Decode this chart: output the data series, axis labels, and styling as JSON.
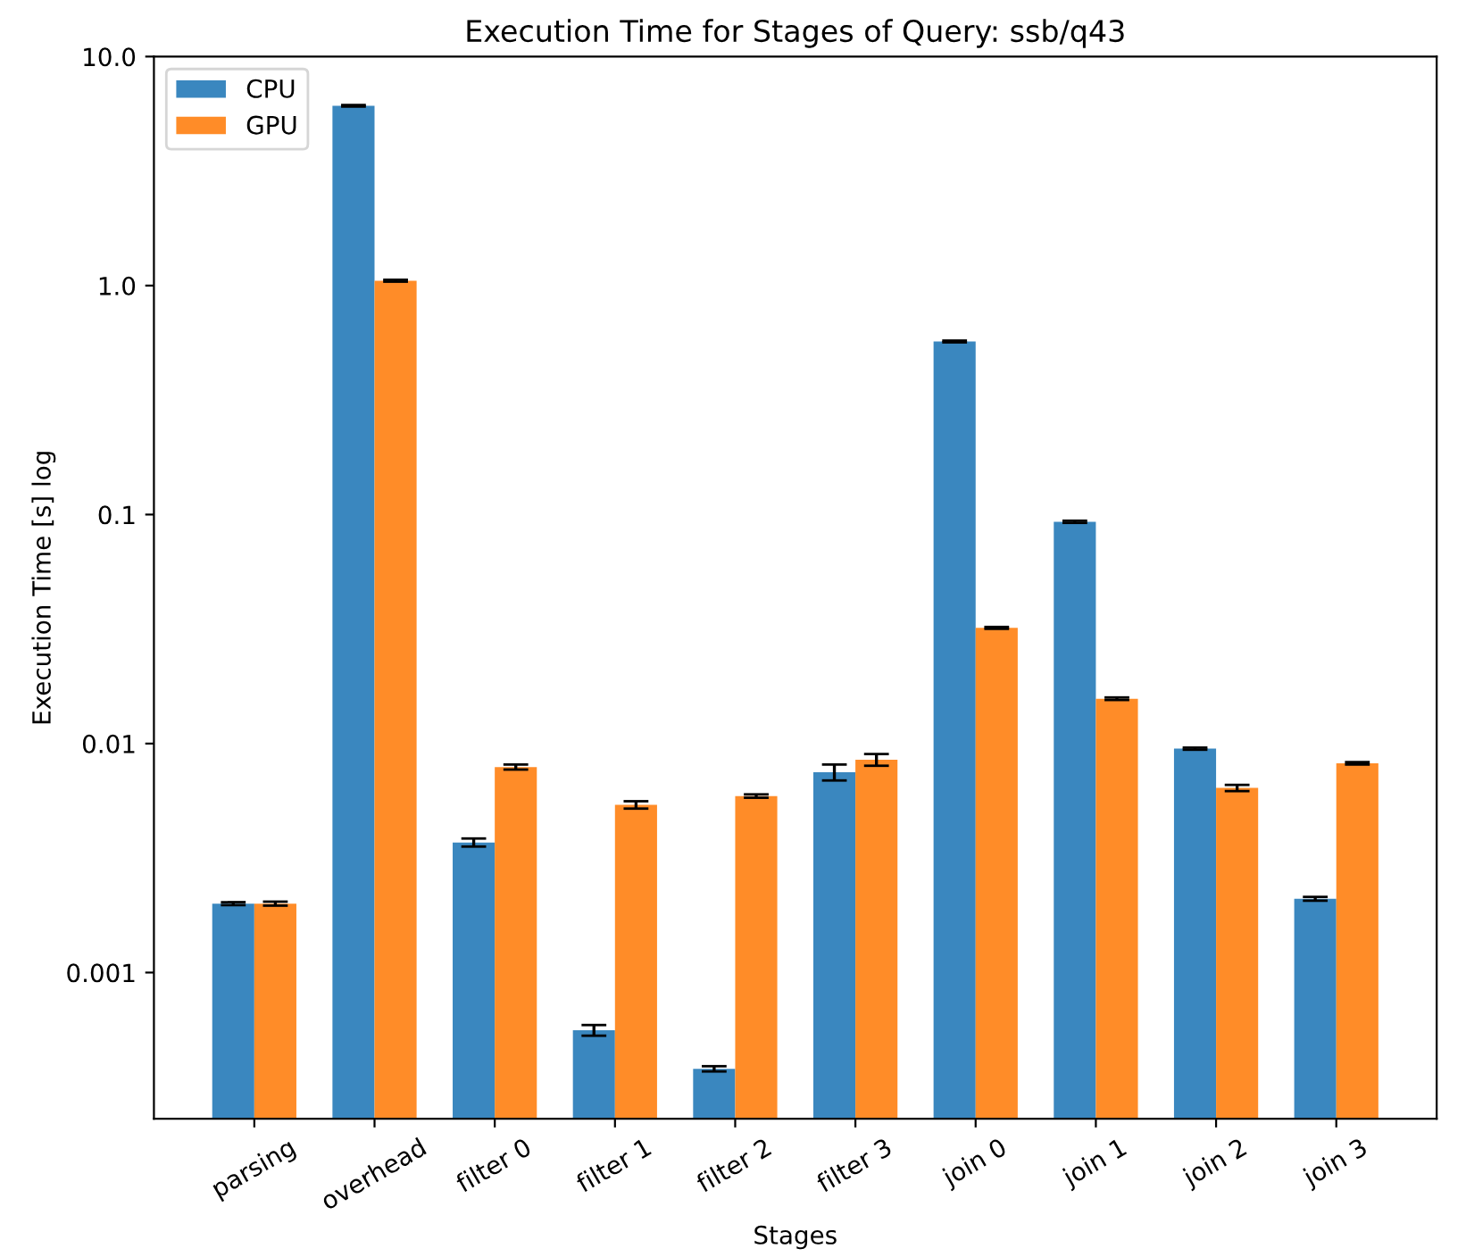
{
  "chart_data": {
    "type": "bar",
    "title": "Execution Time for Stages of Query: ssb/q43",
    "xlabel": "Stages",
    "ylabel": "Execution Time [s] log",
    "categories": [
      "parsing",
      "overhead",
      "filter 0",
      "filter 1",
      "filter 2",
      "filter 3",
      "join 0",
      "join 1",
      "join 2",
      "join 3"
    ],
    "series": [
      {
        "name": "CPU",
        "color": "#3a87bf",
        "values": [
          0.002,
          6.1,
          0.0037,
          0.00056,
          0.00038,
          0.0075,
          0.57,
          0.093,
          0.0095,
          0.0021
        ],
        "errors": [
          3e-05,
          0.05,
          0.00015,
          3e-05,
          1e-05,
          0.0006,
          0.005,
          0.001,
          0.0001,
          4e-05
        ]
      },
      {
        "name": "GPU",
        "color": "#ff8c28",
        "values": [
          0.002,
          1.05,
          0.0079,
          0.0054,
          0.0059,
          0.0085,
          0.032,
          0.0157,
          0.0064,
          0.0082
        ],
        "errors": [
          4e-05,
          0.01,
          0.0002,
          0.0002,
          0.0001,
          0.0005,
          0.0003,
          0.0002,
          0.0002,
          0.0001
        ]
      }
    ],
    "log": "y",
    "ylim": [
      0.00023,
      10
    ],
    "yticks": [
      {
        "value": 0.001,
        "label": "0.001"
      },
      {
        "value": 0.01,
        "label": "0.01"
      },
      {
        "value": 0.1,
        "label": "0.1"
      },
      {
        "value": 1,
        "label": "1.0"
      },
      {
        "value": 10,
        "label": "10.0"
      }
    ],
    "legend": "top left",
    "grid": false
  }
}
